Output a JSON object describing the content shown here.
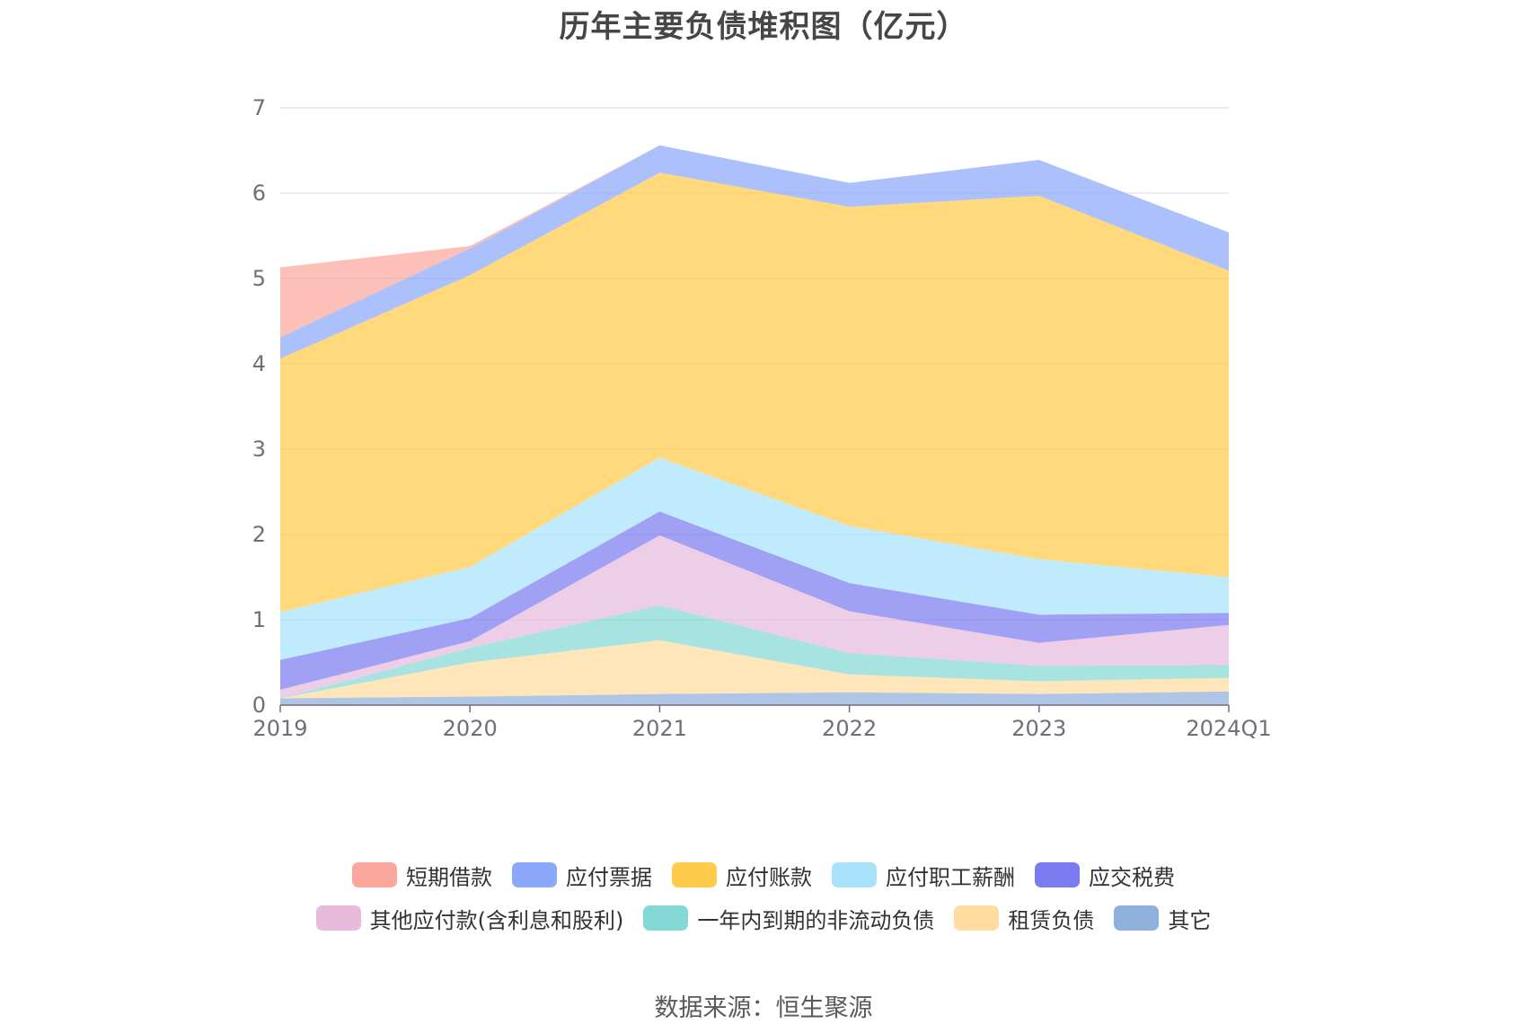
{
  "chart_data": {
    "type": "area",
    "stacked": true,
    "title": "历年主要负债堆积图（亿元）",
    "xlabel": "",
    "ylabel": "",
    "categories": [
      "2019",
      "2020",
      "2021",
      "2022",
      "2023",
      "2024Q1"
    ],
    "ylim": [
      0,
      7
    ],
    "yticks": [
      "0",
      "1",
      "2",
      "3",
      "4",
      "5",
      "6",
      "7"
    ],
    "grid": true,
    "legend_position": "bottom",
    "series": [
      {
        "name": "其它",
        "color": "#8fafdc",
        "values": [
          0.08,
          0.1,
          0.13,
          0.15,
          0.13,
          0.16
        ]
      },
      {
        "name": "租赁负债",
        "color": "#ffdc9f",
        "values": [
          0.0,
          0.4,
          0.63,
          0.21,
          0.15,
          0.16
        ]
      },
      {
        "name": "一年内到期的非流动负债",
        "color": "#84d8d6",
        "values": [
          0.0,
          0.17,
          0.41,
          0.25,
          0.18,
          0.15
        ]
      },
      {
        "name": "其他应付款(含利息和股利)",
        "color": "#e8bbdc",
        "values": [
          0.1,
          0.08,
          0.82,
          0.49,
          0.27,
          0.47
        ]
      },
      {
        "name": "应交税费",
        "color": "#7b7bf0",
        "values": [
          0.35,
          0.27,
          0.28,
          0.33,
          0.33,
          0.14
        ]
      },
      {
        "name": "应付职工薪酬",
        "color": "#a8e3fb",
        "values": [
          0.56,
          0.6,
          0.63,
          0.67,
          0.65,
          0.42
        ]
      },
      {
        "name": "应付账款",
        "color": "#ffcb4a",
        "values": [
          2.97,
          3.42,
          3.34,
          3.74,
          4.26,
          3.59
        ]
      },
      {
        "name": "应付票据",
        "color": "#8ca8fb",
        "values": [
          0.25,
          0.31,
          0.32,
          0.28,
          0.42,
          0.45
        ]
      },
      {
        "name": "短期借款",
        "color": "#fba79d",
        "values": [
          0.82,
          0.03,
          0.0,
          0.0,
          0.0,
          0.0
        ]
      }
    ],
    "legend_order": [
      "短期借款",
      "应付票据",
      "应付账款",
      "应付职工薪酬",
      "应交税费",
      "其他应付款(含利息和股利)",
      "一年内到期的非流动负债",
      "租赁负债",
      "其它"
    ]
  },
  "source": "数据来源：恒生聚源"
}
